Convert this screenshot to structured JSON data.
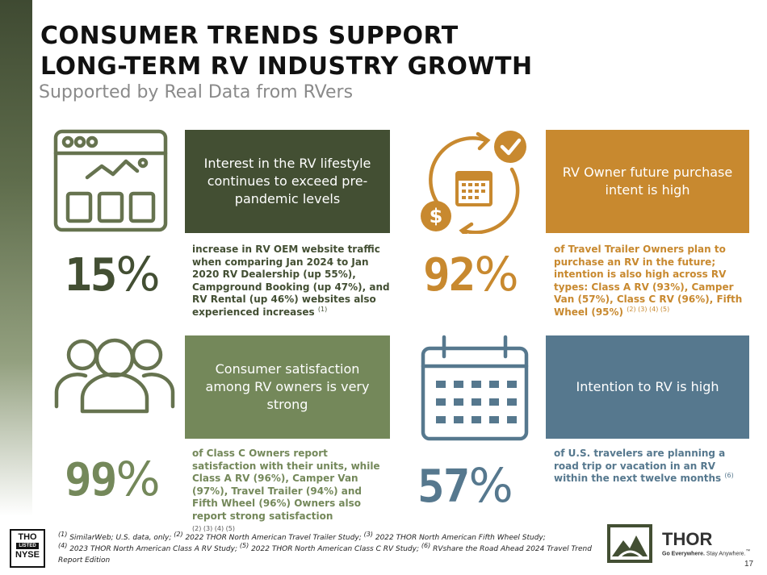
{
  "title_line1": "CONSUMER TRENDS SUPPORT",
  "title_line2": "LONG-TERM RV INDUSTRY GROWTH",
  "subtitle": "Supported by Real Data from RVers",
  "colors": {
    "dark_green": "#434f33",
    "olive_green": "#74885a",
    "orange": "#c8892f",
    "steel_blue": "#56788e",
    "icon_olive": "#66734f",
    "icon_orange": "#c8892f",
    "icon_blue": "#56788e"
  },
  "cards": [
    {
      "icon": "website-browser-icon",
      "box_text": "Interest in the RV lifestyle continues to exceed pre-pandemic levels",
      "percent_num": "15",
      "percent_sym": "%",
      "desc": "increase in RV OEM website traffic when comparing Jan 2024 to Jan 2020 RV Dealership (up 55%), Campground Booking (up 47%), and RV Rental (up 46%) websites also experienced increases",
      "footnote_ref": "(1)"
    },
    {
      "icon": "calendar-cycle-icon",
      "box_text": "RV Owner future purchase intent is high",
      "percent_num": "92",
      "percent_sym": "%",
      "desc": "of Travel Trailer Owners plan to purchase an RV in the future; intention is also high across RV types: Class A RV (93%), Camper Van (57%), Class C RV (96%), Fifth Wheel (95%)",
      "footnote_ref": "(2) (3) (4) (5)"
    },
    {
      "icon": "people-group-icon",
      "box_text": "Consumer satisfaction among RV owners is very strong",
      "percent_num": "99",
      "percent_sym": "%",
      "desc": "of Class C Owners report satisfaction with their units, while Class A RV (96%), Camper Van (97%), Travel Trailer (94%) and Fifth Wheel (96%) Owners also report strong satisfaction",
      "footnote_ref": "(2) (3) (4) (5)"
    },
    {
      "icon": "calendar-icon",
      "box_text": "Intention to RV is high",
      "percent_num": "57",
      "percent_sym": "%",
      "desc": "of U.S. travelers are planning a road trip or vacation in an RV within the next twelve months",
      "footnote_ref": "(6)"
    }
  ],
  "nyse": {
    "line1": "THO",
    "line2": "LISTED",
    "line3": "NYSE"
  },
  "footnotes": {
    "f1_ref": "(1)",
    "f1": " SimilarWeb; U.S. data, only; ",
    "f2_ref": "(2)",
    "f2": " 2022 THOR North American Travel Trailer Study; ",
    "f3_ref": "(3)",
    "f3": " 2022 THOR North American Fifth Wheel Study;",
    "f4_ref": "(4)",
    "f4": " 2023 THOR North American Class A RV Study; ",
    "f5_ref": "(5)",
    "f5": " 2022 THOR North American Class C RV Study; ",
    "f6_ref": "(6)",
    "f6": " RVshare the Road Ahead 2024 Travel Trend Report Edition"
  },
  "logo": {
    "name": "THOR",
    "tagline_bold": "Go Everywhere.",
    "tagline": " Stay Anywhere.",
    "tm": "™"
  },
  "page_number": "17"
}
